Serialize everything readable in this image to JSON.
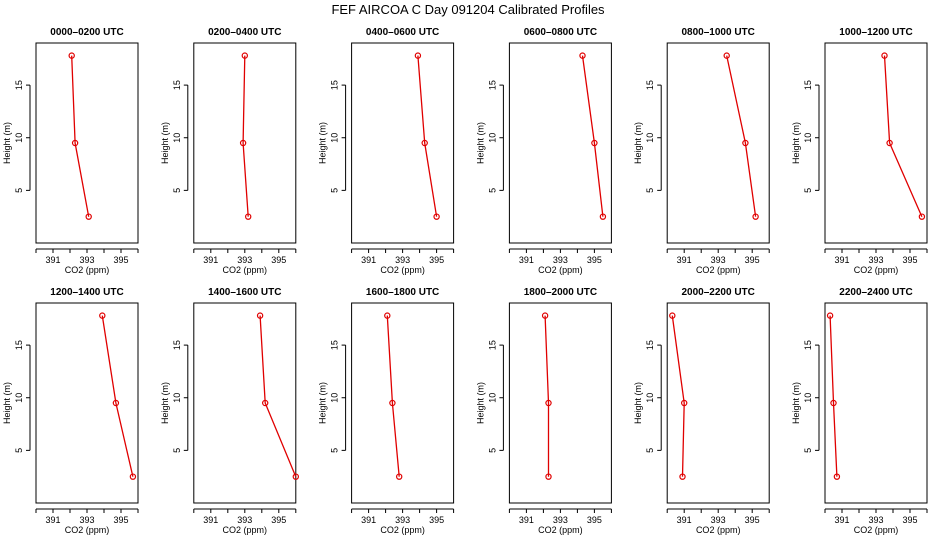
{
  "title": "FEF AIRCOA C  Day 091204  Calibrated Profiles",
  "style": {
    "line_color": "#e00000",
    "axis_color": "#000000"
  },
  "chart_data": [
    {
      "type": "line",
      "title": "0000–0200 UTC",
      "xlabel": "CO2 (ppm)",
      "ylabel": "Height (m)",
      "xlim": [
        390,
        396
      ],
      "ylim": [
        0,
        19
      ],
      "x_ticks": [
        391,
        393,
        395
      ],
      "y_ticks": [
        5,
        10,
        15
      ],
      "x_tick_marks": [
        390,
        391,
        392,
        393,
        394,
        395,
        396
      ],
      "series": [
        {
          "x": [
            393.1,
            392.3,
            392.1
          ],
          "y": [
            2.5,
            9.5,
            17.8
          ]
        }
      ]
    },
    {
      "type": "line",
      "title": "0200–0400 UTC",
      "xlabel": "CO2 (ppm)",
      "ylabel": "Height (m)",
      "xlim": [
        390,
        396
      ],
      "ylim": [
        0,
        19
      ],
      "x_ticks": [
        391,
        393,
        395
      ],
      "y_ticks": [
        5,
        10,
        15
      ],
      "x_tick_marks": [
        390,
        391,
        392,
        393,
        394,
        395,
        396
      ],
      "series": [
        {
          "x": [
            393.2,
            392.9,
            393.0
          ],
          "y": [
            2.5,
            9.5,
            17.8
          ]
        }
      ]
    },
    {
      "type": "line",
      "title": "0400–0600 UTC",
      "xlabel": "CO2 (ppm)",
      "ylabel": "Height (m)",
      "xlim": [
        390,
        396
      ],
      "ylim": [
        0,
        19
      ],
      "x_ticks": [
        391,
        393,
        395
      ],
      "y_ticks": [
        5,
        10,
        15
      ],
      "x_tick_marks": [
        390,
        391,
        392,
        393,
        394,
        395,
        396
      ],
      "series": [
        {
          "x": [
            395.0,
            394.3,
            393.9
          ],
          "y": [
            2.5,
            9.5,
            17.8
          ]
        }
      ]
    },
    {
      "type": "line",
      "title": "0600–0800 UTC",
      "xlabel": "CO2 (ppm)",
      "ylabel": "Height (m)",
      "xlim": [
        390,
        396
      ],
      "ylim": [
        0,
        19
      ],
      "x_ticks": [
        391,
        393,
        395
      ],
      "y_ticks": [
        5,
        10,
        15
      ],
      "x_tick_marks": [
        390,
        391,
        392,
        393,
        394,
        395,
        396
      ],
      "series": [
        {
          "x": [
            395.5,
            395.0,
            394.3
          ],
          "y": [
            2.5,
            9.5,
            17.8
          ]
        }
      ]
    },
    {
      "type": "line",
      "title": "0800–1000 UTC",
      "xlabel": "CO2 (ppm)",
      "ylabel": "Height (m)",
      "xlim": [
        390,
        396
      ],
      "ylim": [
        0,
        19
      ],
      "x_ticks": [
        391,
        393,
        395
      ],
      "y_ticks": [
        5,
        10,
        15
      ],
      "x_tick_marks": [
        390,
        391,
        392,
        393,
        394,
        395,
        396
      ],
      "series": [
        {
          "x": [
            395.2,
            394.6,
            393.5
          ],
          "y": [
            2.5,
            9.5,
            17.8
          ]
        }
      ]
    },
    {
      "type": "line",
      "title": "1000–1200 UTC",
      "xlabel": "CO2 (ppm)",
      "ylabel": "Height (m)",
      "xlim": [
        390,
        396
      ],
      "ylim": [
        0,
        19
      ],
      "x_ticks": [
        391,
        393,
        395
      ],
      "y_ticks": [
        5,
        10,
        15
      ],
      "x_tick_marks": [
        390,
        391,
        392,
        393,
        394,
        395,
        396
      ],
      "series": [
        {
          "x": [
            395.7,
            393.8,
            393.5
          ],
          "y": [
            2.5,
            9.5,
            17.8
          ]
        }
      ]
    },
    {
      "type": "line",
      "title": "1200–1400 UTC",
      "xlabel": "CO2 (ppm)",
      "ylabel": "Height (m)",
      "xlim": [
        390,
        396
      ],
      "ylim": [
        0,
        19
      ],
      "x_ticks": [
        391,
        393,
        395
      ],
      "y_ticks": [
        5,
        10,
        15
      ],
      "x_tick_marks": [
        390,
        391,
        392,
        393,
        394,
        395,
        396
      ],
      "series": [
        {
          "x": [
            395.7,
            394.7,
            393.9
          ],
          "y": [
            2.5,
            9.5,
            17.8
          ]
        }
      ]
    },
    {
      "type": "line",
      "title": "1400–1600 UTC",
      "xlabel": "CO2 (ppm)",
      "ylabel": "Height (m)",
      "xlim": [
        390,
        396
      ],
      "ylim": [
        0,
        19
      ],
      "x_ticks": [
        391,
        393,
        395
      ],
      "y_ticks": [
        5,
        10,
        15
      ],
      "x_tick_marks": [
        390,
        391,
        392,
        393,
        394,
        395,
        396
      ],
      "series": [
        {
          "x": [
            396.0,
            394.2,
            393.9
          ],
          "y": [
            2.5,
            9.5,
            17.8
          ]
        }
      ]
    },
    {
      "type": "line",
      "title": "1600–1800 UTC",
      "xlabel": "CO2 (ppm)",
      "ylabel": "Height (m)",
      "xlim": [
        390,
        396
      ],
      "ylim": [
        0,
        19
      ],
      "x_ticks": [
        391,
        393,
        395
      ],
      "y_ticks": [
        5,
        10,
        15
      ],
      "x_tick_marks": [
        390,
        391,
        392,
        393,
        394,
        395,
        396
      ],
      "series": [
        {
          "x": [
            392.8,
            392.4,
            392.1
          ],
          "y": [
            2.5,
            9.5,
            17.8
          ]
        }
      ]
    },
    {
      "type": "line",
      "title": "1800–2000 UTC",
      "xlabel": "CO2 (ppm)",
      "ylabel": "Height (m)",
      "xlim": [
        390,
        396
      ],
      "ylim": [
        0,
        19
      ],
      "x_ticks": [
        391,
        393,
        395
      ],
      "y_ticks": [
        5,
        10,
        15
      ],
      "x_tick_marks": [
        390,
        391,
        392,
        393,
        394,
        395,
        396
      ],
      "series": [
        {
          "x": [
            392.3,
            392.3,
            392.1
          ],
          "y": [
            2.5,
            9.5,
            17.8
          ]
        }
      ]
    },
    {
      "type": "line",
      "title": "2000–2200 UTC",
      "xlabel": "CO2 (ppm)",
      "ylabel": "Height (m)",
      "xlim": [
        390,
        396
      ],
      "ylim": [
        0,
        19
      ],
      "x_ticks": [
        391,
        393,
        395
      ],
      "y_ticks": [
        5,
        10,
        15
      ],
      "x_tick_marks": [
        390,
        391,
        392,
        393,
        394,
        395,
        396
      ],
      "series": [
        {
          "x": [
            390.9,
            391.0,
            390.3
          ],
          "y": [
            2.5,
            9.5,
            17.8
          ]
        }
      ]
    },
    {
      "type": "line",
      "title": "2200–2400 UTC",
      "xlabel": "CO2 (ppm)",
      "ylabel": "Height (m)",
      "xlim": [
        390,
        396
      ],
      "ylim": [
        0,
        19
      ],
      "x_ticks": [
        391,
        393,
        395
      ],
      "y_ticks": [
        5,
        10,
        15
      ],
      "x_tick_marks": [
        390,
        391,
        392,
        393,
        394,
        395,
        396
      ],
      "series": [
        {
          "x": [
            390.7,
            390.5,
            390.3
          ],
          "y": [
            2.5,
            9.5,
            17.8
          ]
        }
      ]
    }
  ]
}
